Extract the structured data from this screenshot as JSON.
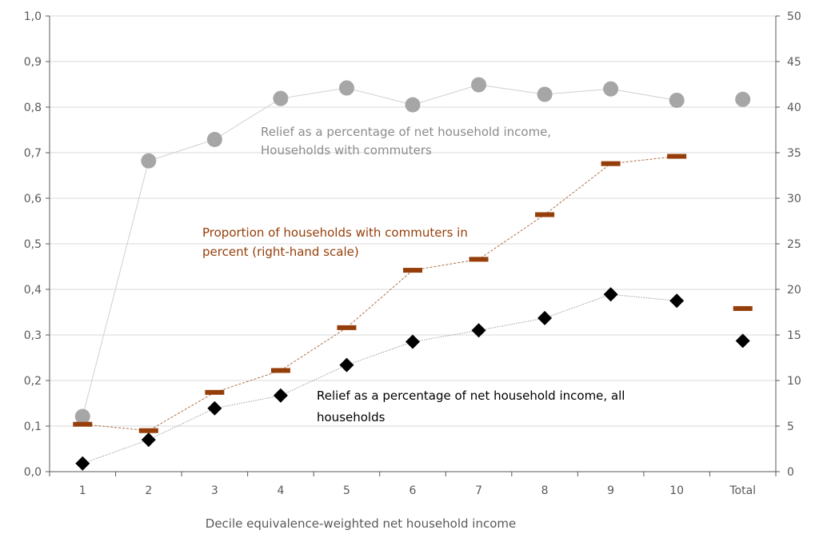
{
  "chart_data": {
    "type": "line",
    "xlabel": "Decile equivalence-weighted net household income",
    "categories": [
      "1",
      "2",
      "3",
      "4",
      "5",
      "6",
      "7",
      "8",
      "9",
      "10",
      "Total"
    ],
    "y_left": {
      "range": [
        0,
        1.0
      ],
      "ticks": [
        "0,0",
        "0,1",
        "0,2",
        "0,3",
        "0,4",
        "0,5",
        "0,6",
        "0,7",
        "0,8",
        "0,9",
        "1,0"
      ]
    },
    "y_right": {
      "range": [
        0,
        50
      ],
      "ticks": [
        "0",
        "5",
        "10",
        "15",
        "20",
        "25",
        "30",
        "35",
        "40",
        "45",
        "50"
      ]
    },
    "grid": true,
    "series": [
      {
        "key": "commuters",
        "axis": "left",
        "marker": "circle",
        "color": "#a6a6a6",
        "line_color": "#d0d0d0",
        "connected_through": 10,
        "values": [
          0.121,
          0.682,
          0.729,
          0.819,
          0.842,
          0.805,
          0.849,
          0.828,
          0.84,
          0.815,
          0.817
        ]
      },
      {
        "key": "proportion",
        "axis": "right",
        "marker": "dash",
        "color": "#953e0a",
        "line_color": "#b0704a",
        "connected_through": 10,
        "values": [
          5.2,
          4.5,
          8.7,
          11.1,
          15.8,
          22.1,
          23.3,
          28.2,
          33.8,
          34.6,
          17.9
        ]
      },
      {
        "key": "all",
        "axis": "left",
        "marker": "diamond",
        "color": "#000000",
        "line_color": "#a0a0a0",
        "connected_through": 10,
        "values": [
          0.018,
          0.07,
          0.139,
          0.167,
          0.234,
          0.285,
          0.31,
          0.337,
          0.389,
          0.375,
          0.287
        ]
      }
    ],
    "annotations": [
      {
        "key": "commuters",
        "color": "#8c8c8c",
        "lines": [
          "Relief as a percentage of net household income,",
          "Households with commuters"
        ]
      },
      {
        "key": "proportion",
        "color": "#953e0a",
        "lines": [
          "Proportion of households with commuters in",
          "percent (right-hand scale)"
        ]
      },
      {
        "key": "all",
        "color": "#000000",
        "lines": [
          "Relief as a percentage of net household income, all",
          "households"
        ]
      }
    ]
  }
}
